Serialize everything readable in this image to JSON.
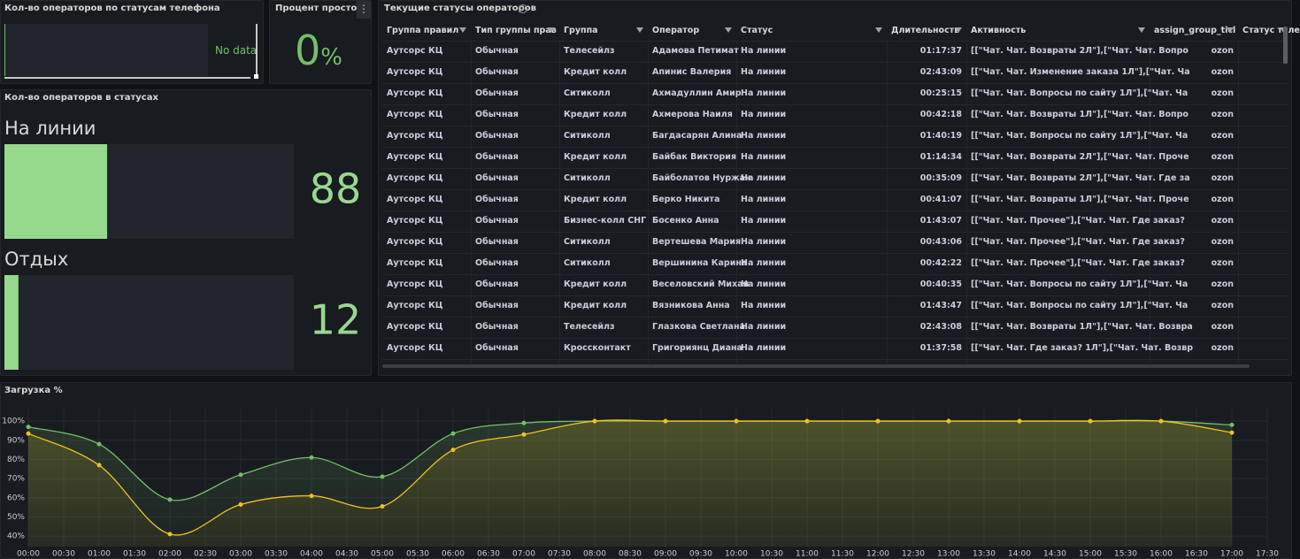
{
  "phone_panel": {
    "title": "Кол-во операторов по статусам телефона",
    "message": "No data"
  },
  "idle_panel": {
    "title": "Процент простоя",
    "value": 0,
    "unit": "%"
  },
  "table": {
    "title": "Текущие статусы операторов",
    "columns": [
      "Группа правил",
      "Тип группы прав",
      "Группа",
      "Оператор",
      "Статус",
      "Длительность",
      "Активность",
      "assign_group_ticl",
      "Статус теле"
    ],
    "rows": [
      [
        "Аутсорс КЦ",
        "Обычная",
        "Телесейлз",
        "Адамова Петимат",
        "На линии",
        "01:17:37",
        "[[\"Чат. Чат. Возвраты 2Л\"],[\"Чат. Чат. Вопро",
        "ozon"
      ],
      [
        "Аутсорс КЦ",
        "Обычная",
        "Кредит колл",
        "Апинис Валерия",
        "На линии",
        "02:43:09",
        "[[\"Чат. Чат. Изменение заказа 1Л\"],[\"Чат. Ча",
        "ozon"
      ],
      [
        "Аутсорс КЦ",
        "Обычная",
        "Ситиколл",
        "Ахмадуллин Амир",
        "На линии",
        "00:25:15",
        "[[\"Чат. Чат. Вопросы по сайту 1Л\"],[\"Чат. Ча",
        "ozon"
      ],
      [
        "Аутсорс КЦ",
        "Обычная",
        "Кредит колл",
        "Ахмерова Наиля",
        "На линии",
        "00:42:18",
        "[[\"Чат. Чат. Возвраты 1Л\"],[\"Чат. Чат. Вопро",
        "ozon"
      ],
      [
        "Аутсорс КЦ",
        "Обычная",
        "Ситиколл",
        "Багдасарян Алина",
        "На линии",
        "01:40:19",
        "[[\"Чат. Чат. Вопросы по сайту 1Л\"],[\"Чат. Ча",
        "ozon"
      ],
      [
        "Аутсорс КЦ",
        "Обычная",
        "Кредит колл",
        "Байбак Виктория",
        "На линии",
        "01:14:34",
        "[[\"Чат. Чат. Возвраты 2Л\"],[\"Чат. Чат. Проче",
        "ozon"
      ],
      [
        "Аутсорс КЦ",
        "Обычная",
        "Ситиколл",
        "Байболатов Нуржан",
        "На линии",
        "00:35:09",
        "[[\"Чат. Чат. Возвраты 2Л\"],[\"Чат. Чат. Где за",
        "ozon"
      ],
      [
        "Аутсорс КЦ",
        "Обычная",
        "Кредит колл",
        "Берко Никита",
        "На линии",
        "00:41:07",
        "[[\"Чат. Чат. Возвраты 1Л\"],[\"Чат. Чат. Проче",
        "ozon"
      ],
      [
        "Аутсорс КЦ",
        "Обычная",
        "Бизнес-колл СНГ",
        "Босенко Анна",
        "На линии",
        "01:43:07",
        "[[\"Чат. Чат. Прочее\"],[\"Чат. Чат. Где заказ?",
        "ozon"
      ],
      [
        "Аутсорс КЦ",
        "Обычная",
        "Ситиколл",
        "Вертешева Мария",
        "На линии",
        "00:43:06",
        "[[\"Чат. Чат. Прочее\"],[\"Чат. Чат. Где заказ?",
        "ozon"
      ],
      [
        "Аутсорс КЦ",
        "Обычная",
        "Ситиколл",
        "Вершинина Карина",
        "На линии",
        "00:42:22",
        "[[\"Чат. Чат. Прочее\"],[\"Чат. Чат. Где заказ?",
        "ozon"
      ],
      [
        "Аутсорс КЦ",
        "Обычная",
        "Кредит колл",
        "Веселовский Михаи",
        "На линии",
        "00:40:35",
        "[[\"Чат. Чат. Вопросы по сайту 1Л\"],[\"Чат. Ча",
        "ozon"
      ],
      [
        "Аутсорс КЦ",
        "Обычная",
        "Кредит колл",
        "Вязникова Анна",
        "На линии",
        "01:43:47",
        "[[\"Чат. Чат. Вопросы по сайту 1Л\"],[\"Чат. Ча",
        "ozon"
      ],
      [
        "Аутсорс КЦ",
        "Обычная",
        "Телесейлз",
        "Глазкова Светлана",
        "На линии",
        "02:43:08",
        "[[\"Чат. Чат. Возвраты 1Л\"],[\"Чат. Чат. Возвра",
        "ozon"
      ],
      [
        "Аутсорс КЦ",
        "Обычная",
        "Кроссконтакт",
        "Григориянц Диана",
        "На линии",
        "01:37:58",
        "[[\"Чат. Чат. Где заказ? 1Л\"],[\"Чат. Чат. Возвр",
        "ozon"
      ]
    ]
  },
  "chart_data": [
    {
      "type": "bargauge",
      "title": "Кол-во операторов в статусах",
      "categories": [
        "На линии",
        "Отдых"
      ],
      "values": [
        88,
        12
      ],
      "color": "#96d98d",
      "xlim": [
        0,
        248
      ]
    },
    {
      "type": "line",
      "title": "Загрузка %",
      "x": [
        0,
        60,
        120,
        180,
        240,
        300,
        360,
        420,
        480,
        540,
        600,
        660,
        720,
        780,
        840,
        900,
        960,
        1020
      ],
      "xlim": [
        0,
        1050
      ],
      "xticks": [
        {
          "value": 0,
          "label": "00:00"
        },
        {
          "value": 30,
          "label": "00:30"
        },
        {
          "value": 60,
          "label": "01:00"
        },
        {
          "value": 90,
          "label": "01:30"
        },
        {
          "value": 120,
          "label": "02:00"
        },
        {
          "value": 150,
          "label": "02:30"
        },
        {
          "value": 180,
          "label": "03:00"
        },
        {
          "value": 210,
          "label": "03:30"
        },
        {
          "value": 240,
          "label": "04:00"
        },
        {
          "value": 270,
          "label": "04:30"
        },
        {
          "value": 300,
          "label": "05:00"
        },
        {
          "value": 330,
          "label": "05:30"
        },
        {
          "value": 360,
          "label": "06:00"
        },
        {
          "value": 390,
          "label": "06:30"
        },
        {
          "value": 420,
          "label": "07:00"
        },
        {
          "value": 450,
          "label": "07:30"
        },
        {
          "value": 480,
          "label": "08:00"
        },
        {
          "value": 510,
          "label": "08:30"
        },
        {
          "value": 540,
          "label": "09:00"
        },
        {
          "value": 570,
          "label": "09:30"
        },
        {
          "value": 600,
          "label": "10:00"
        },
        {
          "value": 630,
          "label": "10:30"
        },
        {
          "value": 660,
          "label": "11:00"
        },
        {
          "value": 690,
          "label": "11:30"
        },
        {
          "value": 720,
          "label": "12:00"
        },
        {
          "value": 750,
          "label": "12:30"
        },
        {
          "value": 780,
          "label": "13:00"
        },
        {
          "value": 810,
          "label": "13:30"
        },
        {
          "value": 840,
          "label": "14:00"
        },
        {
          "value": 870,
          "label": "14:30"
        },
        {
          "value": 900,
          "label": "15:00"
        },
        {
          "value": 930,
          "label": "15:30"
        },
        {
          "value": 960,
          "label": "16:00"
        },
        {
          "value": 990,
          "label": "16:30"
        },
        {
          "value": 1020,
          "label": "17:00"
        },
        {
          "value": 1050,
          "label": "17:30"
        }
      ],
      "ylim": [
        34.5,
        106.5
      ],
      "yticks": [
        {
          "value": 40,
          "label": "40%"
        },
        {
          "value": 50,
          "label": "50%"
        },
        {
          "value": 60,
          "label": "60%"
        },
        {
          "value": 70,
          "label": "70%"
        },
        {
          "value": 80,
          "label": "80%"
        },
        {
          "value": 90,
          "label": "90%"
        },
        {
          "value": 100,
          "label": "100%"
        }
      ],
      "grid": true,
      "series": [
        {
          "color": "#73bf69",
          "values": [
            97,
            88,
            59,
            72,
            81,
            71,
            93.5,
            99,
            100,
            100,
            100,
            100,
            100,
            100,
            100,
            100,
            100,
            98
          ]
        },
        {
          "color": "#f2c01e",
          "values": [
            93.5,
            77,
            41,
            56.5,
            61,
            55.5,
            85,
            93,
            100,
            100,
            100,
            100,
            100,
            100,
            100,
            100,
            100,
            94
          ]
        }
      ]
    }
  ]
}
